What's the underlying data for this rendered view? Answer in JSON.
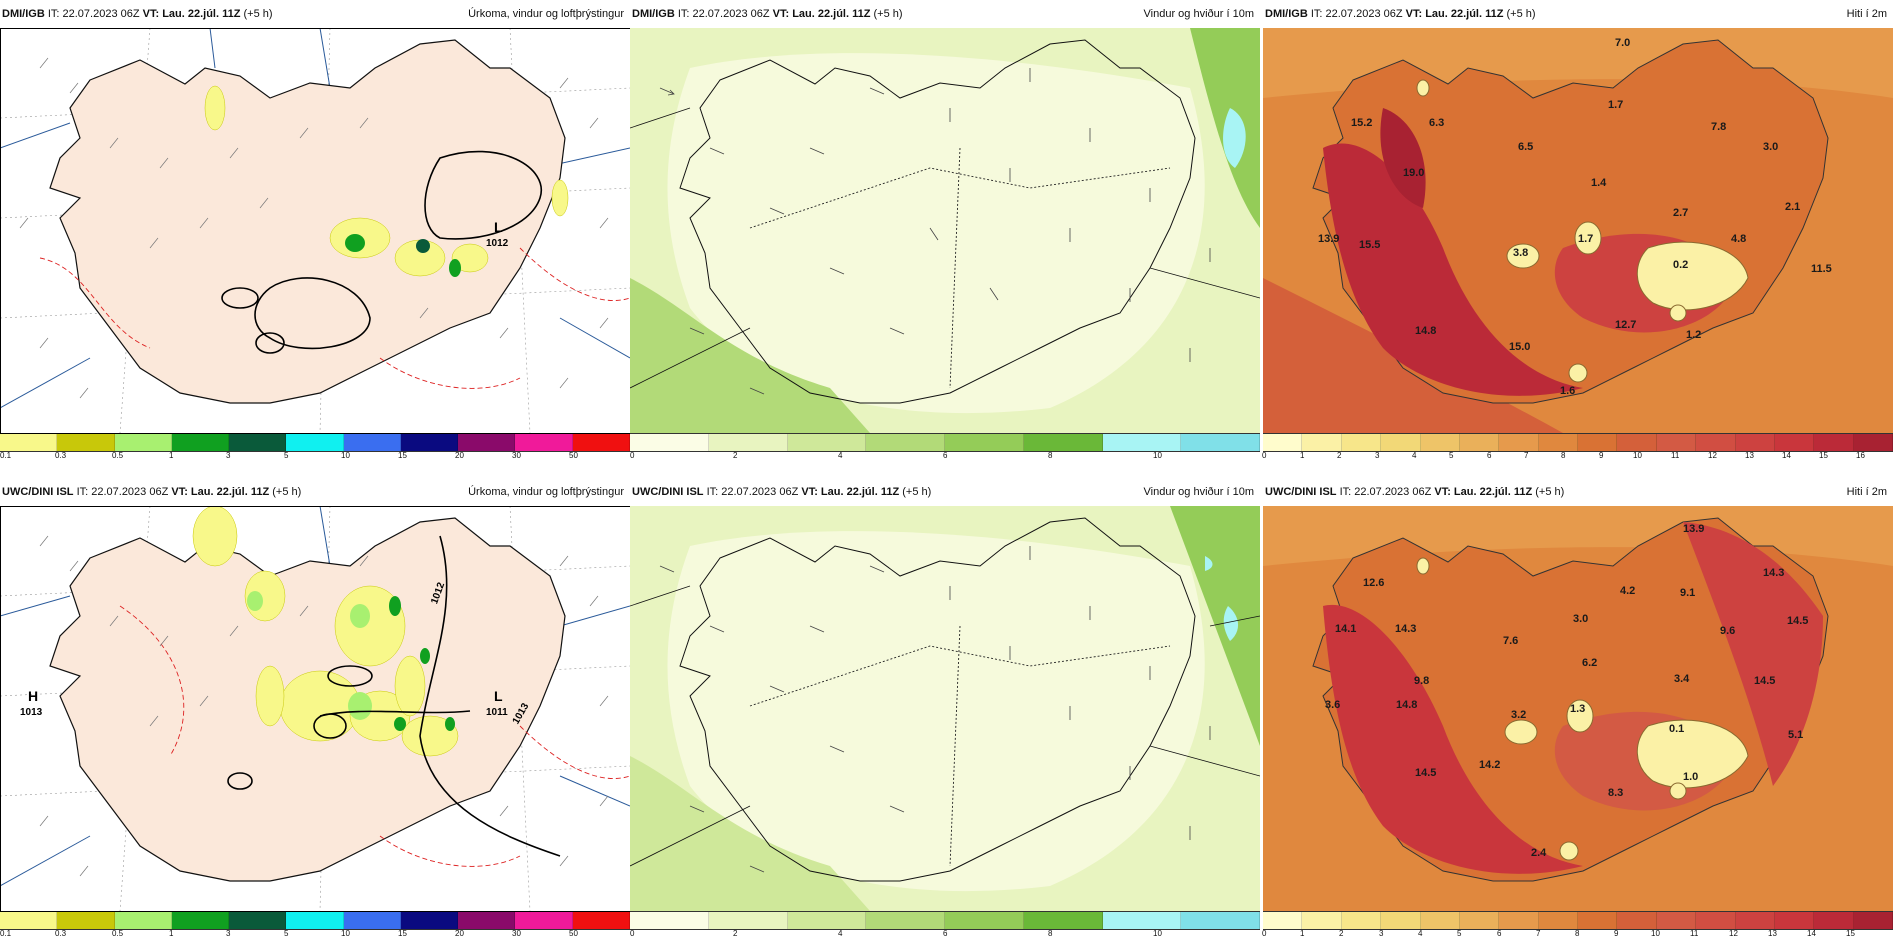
{
  "panels": [
    {
      "id": "dmi-precip",
      "source": "DMI/IGB",
      "it_prefix": "IT: 22.07.2023 06Z",
      "vt_label": "VT: Lau. 22.júl. 11Z",
      "vt_suffix": "(+5 h)",
      "title": "Úrkoma, vindur og loftþrýstingur",
      "legend": [
        "0.1",
        "0.3",
        "0.5",
        "1",
        "3",
        "5",
        "10",
        "15",
        "20",
        "30",
        "50"
      ],
      "legend_colors": [
        "#f8f88a",
        "#c8c80a",
        "#a8f070",
        "#10a020",
        "#0a5a3a",
        "#10f0f0",
        "#3a6ef0",
        "#0a0a80",
        "#8a0a6a",
        "#f01a9a",
        "#f01010"
      ],
      "pressure_labels": [
        {
          "letter": "L",
          "value": "1012"
        }
      ]
    },
    {
      "id": "dmi-wind",
      "source": "DMI/IGB",
      "it_prefix": "IT: 22.07.2023 06Z",
      "vt_label": "VT: Lau. 22.júl. 11Z",
      "vt_suffix": "(+5 h)",
      "title": "Vindur og hviður í 10m",
      "legend": [
        "0",
        "2",
        "4",
        "6",
        "8",
        "10"
      ],
      "legend_colors": [
        "#fbfde6",
        "#e8f4c0",
        "#cfe89a",
        "#b2da78",
        "#94cc58",
        "#6ab838",
        "#a8f4f4",
        "#80e0e8"
      ]
    },
    {
      "id": "dmi-temp",
      "source": "DMI/IGB",
      "it_prefix": "IT: 22.07.2023 06Z",
      "vt_label": "VT: Lau. 22.júl. 11Z",
      "vt_suffix": "(+5 h)",
      "title": "Hiti í 2m",
      "legend": [
        "0",
        "1",
        "2",
        "3",
        "4",
        "5",
        "6",
        "7",
        "8",
        "9",
        "10",
        "11",
        "12",
        "13",
        "14",
        "15",
        "16"
      ],
      "legend_colors": [
        "#fffccc",
        "#fbf1a6",
        "#f7e68a",
        "#f2d877",
        "#eec468",
        "#eab05a",
        "#e69a4c",
        "#e0883e",
        "#d97234",
        "#d4603a",
        "#d35a44",
        "#d14e42",
        "#cd4240",
        "#c9363c",
        "#bb2a38",
        "#a82232"
      ],
      "values": [
        "7.0",
        "1.7",
        "7.8",
        "15.2",
        "6.3",
        "6.5",
        "3.0",
        "19.0",
        "1.4",
        "2.1",
        "2.7",
        "13.9",
        "15.5",
        "3.8",
        "1.7",
        "4.8",
        "0.2",
        "11.5",
        "14.8",
        "12.7",
        "1.2",
        "15.0",
        "1.6"
      ]
    },
    {
      "id": "uwc-precip",
      "source": "UWC/DINI ISL",
      "it_prefix": "IT: 22.07.2023 06Z",
      "vt_label": "VT: Lau. 22.júl. 11Z",
      "vt_suffix": "(+5 h)",
      "title": "Úrkoma, vindur og loftþrýstingur",
      "legend": [
        "0.1",
        "0.3",
        "0.5",
        "1",
        "3",
        "5",
        "10",
        "15",
        "20",
        "30",
        "50"
      ],
      "legend_colors": [
        "#f8f88a",
        "#c8c80a",
        "#a8f070",
        "#10a020",
        "#0a5a3a",
        "#10f0f0",
        "#3a6ef0",
        "#0a0a80",
        "#8a0a6a",
        "#f01a9a",
        "#f01010"
      ],
      "pressure_labels": [
        {
          "letter": "H",
          "value": "1013"
        },
        {
          "letter": "L",
          "value": "1011"
        }
      ],
      "isobar_labels": [
        "1012",
        "1013"
      ]
    },
    {
      "id": "uwc-wind",
      "source": "UWC/DINI ISL",
      "it_prefix": "IT: 22.07.2023 06Z",
      "vt_label": "VT: Lau. 22.júl. 11Z",
      "vt_suffix": "(+5 h)",
      "title": "Vindur og hviður í 10m",
      "legend": [
        "0",
        "2",
        "4",
        "6",
        "8",
        "10"
      ],
      "legend_colors": [
        "#fbfde6",
        "#e8f4c0",
        "#cfe89a",
        "#b2da78",
        "#94cc58",
        "#6ab838",
        "#a8f4f4",
        "#80e0e8"
      ]
    },
    {
      "id": "uwc-temp",
      "source": "UWC/DINI ISL",
      "it_prefix": "IT: 22.07.2023 06Z",
      "vt_label": "VT: Lau. 22.júl. 11Z",
      "vt_suffix": "(+5 h)",
      "title": "Hiti í 2m",
      "legend": [
        "0",
        "1",
        "2",
        "3",
        "4",
        "5",
        "6",
        "7",
        "8",
        "9",
        "10",
        "11",
        "12",
        "13",
        "14",
        "15"
      ],
      "legend_colors": [
        "#fffccc",
        "#fbf1a6",
        "#f7e68a",
        "#f2d877",
        "#eec468",
        "#eab05a",
        "#e69a4c",
        "#e0883e",
        "#d97234",
        "#d4603a",
        "#d35a44",
        "#d14e42",
        "#cd4240",
        "#c9363c",
        "#bb2a38",
        "#a82232"
      ],
      "values": [
        "13.9",
        "12.6",
        "14.3",
        "4.2",
        "9.1",
        "14.1",
        "14.3",
        "3.0",
        "14.5",
        "7.6",
        "9.6",
        "6.2",
        "9.8",
        "3.4",
        "14.5",
        "3.6",
        "14.8",
        "3.2",
        "1.3",
        "0.1",
        "5.1",
        "14.5",
        "14.2",
        "1.0",
        "8.3",
        "2.4"
      ]
    }
  ]
}
